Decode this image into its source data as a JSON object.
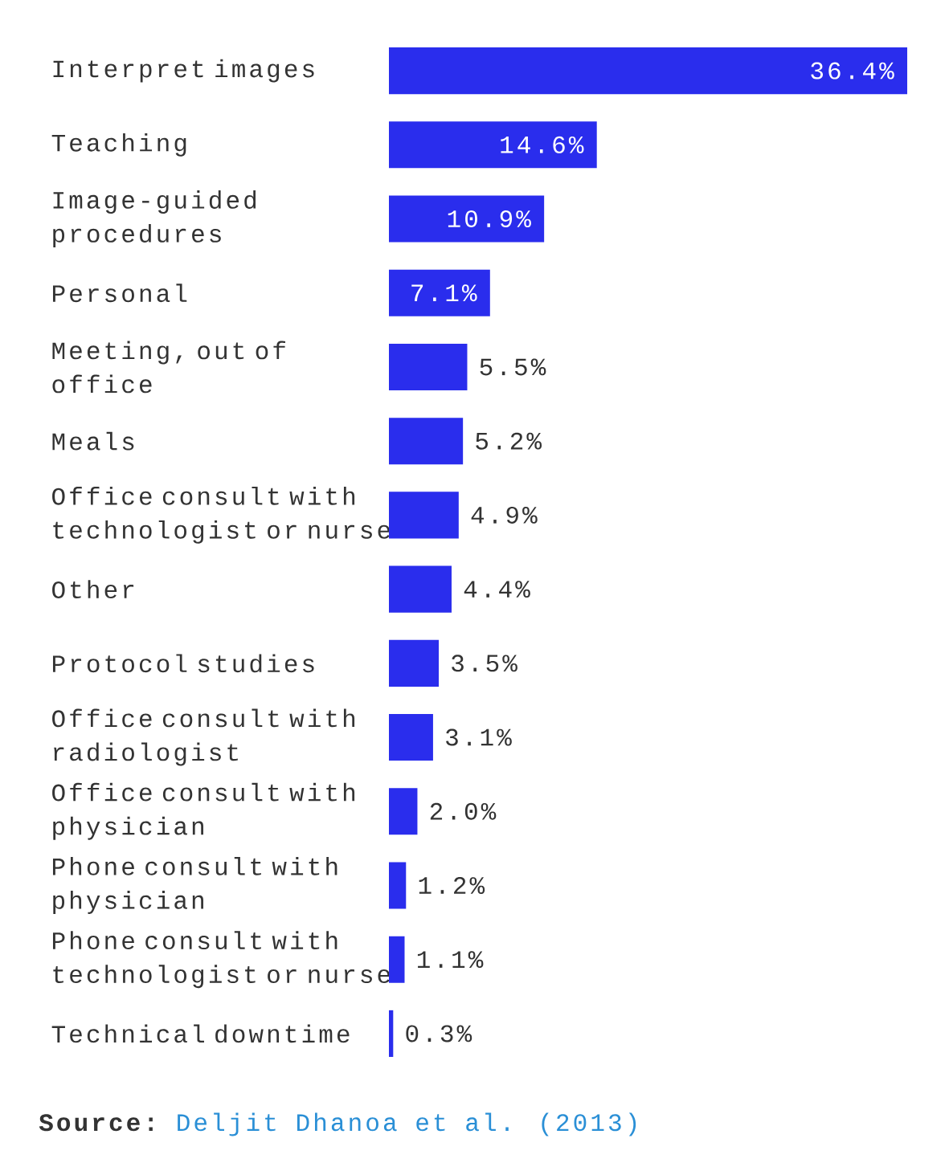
{
  "chart_data": {
    "type": "bar",
    "orientation": "horizontal",
    "tick_labels": "y",
    "color": "#2a2ded",
    "categories": [
      "Interpret images",
      "Teaching",
      "Image-guided procedures",
      "Personal",
      "Meeting, out of office",
      "Meals",
      "Office consult with technologist or nurse",
      "Other",
      "Protocol studies",
      "Office consult with radiologist",
      "Office consult with physician",
      "Phone consult with physician",
      "Phone consult with technologist or nurse",
      "Technical downtime"
    ],
    "values": [
      36.4,
      14.6,
      10.9,
      7.1,
      5.5,
      5.2,
      4.9,
      4.4,
      3.5,
      3.1,
      2.0,
      1.2,
      1.1,
      0.3
    ],
    "value_labels": [
      "36.4%",
      "14.6%",
      "10.9%",
      "7.1%",
      "5.5%",
      "5.2%",
      "4.9%",
      "4.4%",
      "3.5%",
      "3.1%",
      "2.0%",
      "1.2%",
      "1.1%",
      "0.3%"
    ],
    "annotations": [
      "Source:",
      "Deljit Dhanoa et al. (2013)"
    ]
  }
}
